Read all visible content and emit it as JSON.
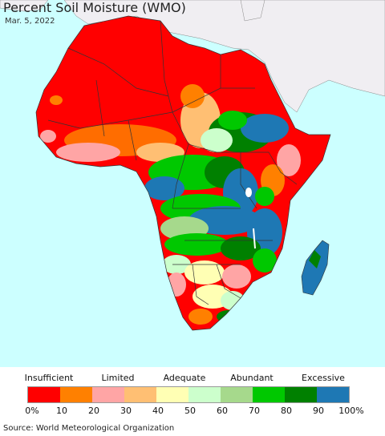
{
  "title": "Percent Soil Moisture (WMO)",
  "date": "Mar. 5, 2022",
  "legend": {
    "categories": [
      "Insufficient",
      "Limited",
      "Adequate",
      "Abundant",
      "Excessive"
    ],
    "ticks": [
      "0%",
      "10",
      "20",
      "30",
      "40",
      "50",
      "60",
      "70",
      "80",
      "90",
      "100%"
    ],
    "colors": [
      "#ff0000",
      "#ff8000",
      "#ffa5a5",
      "#ffbf73",
      "#ffffb4",
      "#ccffcc",
      "#a6d98c",
      "#00c800",
      "#008000",
      "#1e78b4"
    ]
  },
  "source": "Source: World Meteorological Organization",
  "map_colors": {
    "ocean": "#ccffff",
    "land_outside": "#f0eef2",
    "borders": "#333333"
  }
}
